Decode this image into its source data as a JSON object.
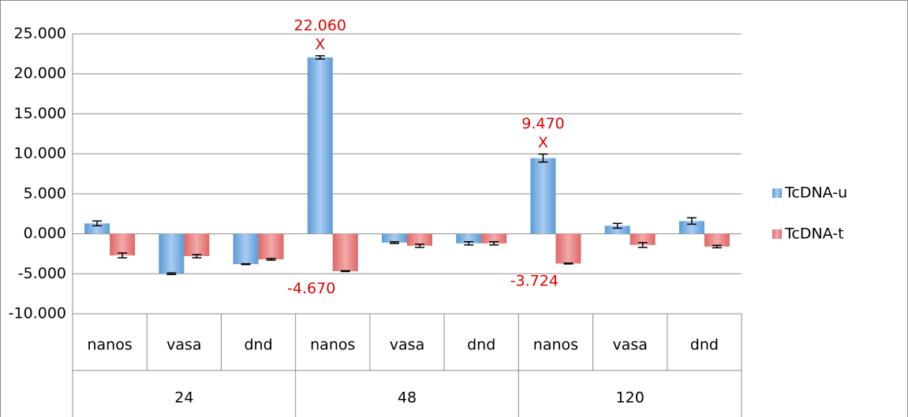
{
  "chart_data": {
    "type": "bar",
    "categories": [
      "nanos",
      "vasa",
      "dnd",
      "nanos",
      "vasa",
      "dnd",
      "nanos",
      "vasa",
      "dnd"
    ],
    "groups": [
      "24",
      "48",
      "120"
    ],
    "ylim": [
      -10,
      25
    ],
    "yticks": [
      {
        "value": -10,
        "label": "-10.000"
      },
      {
        "value": -5,
        "label": "-5.000"
      },
      {
        "value": 0,
        "label": "0.000"
      },
      {
        "value": 5,
        "label": "5.000"
      },
      {
        "value": 10,
        "label": "10.000"
      },
      {
        "value": 15,
        "label": "15.000"
      },
      {
        "value": 20,
        "label": "20.000"
      },
      {
        "value": 25,
        "label": "25.000"
      }
    ],
    "grid": true,
    "legend": "right",
    "series": [
      {
        "name": "TcDNA-u",
        "color": "#5b9bd5",
        "values": [
          1.3,
          -5.0,
          -3.8,
          22.06,
          -1.1,
          -1.2,
          9.47,
          1.0,
          1.6
        ],
        "errors": [
          0.3,
          0.1,
          0.05,
          0.2,
          0.1,
          0.2,
          0.5,
          0.3,
          0.4
        ],
        "value_labels": [
          null,
          null,
          null,
          "22.060",
          null,
          null,
          "9.470",
          null,
          null
        ],
        "value_markers": [
          null,
          null,
          null,
          "X",
          null,
          null,
          "X",
          null,
          null
        ]
      },
      {
        "name": "TcDNA-t",
        "color": "#e06666",
        "values": [
          -2.7,
          -2.8,
          -3.2,
          -4.67,
          -1.5,
          -1.2,
          -3.724,
          -1.4,
          -1.6
        ],
        "errors": [
          0.3,
          0.2,
          0.1,
          0.05,
          0.2,
          0.2,
          0.05,
          0.3,
          0.15
        ],
        "value_labels": [
          null,
          null,
          null,
          "-4.670",
          null,
          null,
          "-3.724",
          null,
          null
        ],
        "value_markers": [
          null,
          null,
          null,
          null,
          null,
          null,
          null,
          null,
          null
        ]
      }
    ]
  }
}
